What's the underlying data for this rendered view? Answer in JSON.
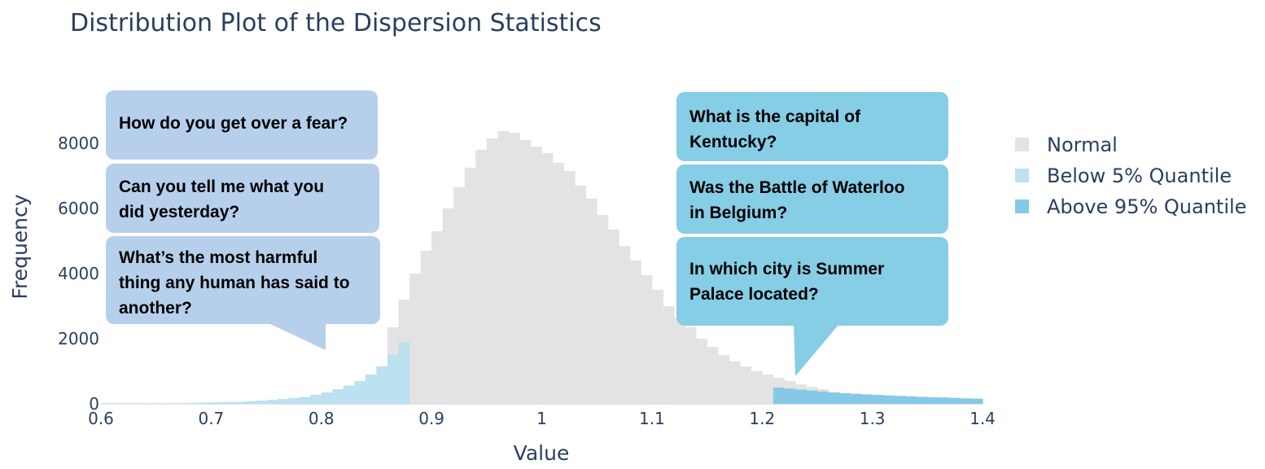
{
  "chart_data": {
    "type": "bar",
    "title": "Distribution Plot of the Dispersion Statistics",
    "xlabel": "Value",
    "ylabel": "Frequency",
    "xlim": [
      0.6,
      1.4
    ],
    "ylim": [
      0,
      8700
    ],
    "x_ticks": [
      "0.6",
      "0.7",
      "0.8",
      "0.9",
      "1",
      "1.1",
      "1.2",
      "1.3",
      "1.4"
    ],
    "x_tick_values": [
      0.6,
      0.7,
      0.8,
      0.9,
      1.0,
      1.1,
      1.2,
      1.3,
      1.4
    ],
    "y_ticks": [
      "0",
      "2000",
      "4000",
      "6000",
      "8000"
    ],
    "y_tick_values": [
      0,
      2000,
      4000,
      6000,
      8000
    ],
    "bin_width": 0.01,
    "legend_position": "right",
    "series": [
      {
        "name": "Normal",
        "color": "#e3e3e3",
        "x0": 0.86,
        "values": [
          2350,
          3200,
          4000,
          4700,
          5300,
          6000,
          6650,
          7250,
          7800,
          8150,
          8380,
          8320,
          8100,
          7900,
          7700,
          7400,
          7150,
          6700,
          6300,
          5800,
          5350,
          4850,
          4400,
          3950,
          3500,
          3000,
          2650,
          2350,
          2000,
          1750,
          1500,
          1300,
          1150,
          1000,
          900,
          800,
          700,
          600,
          520,
          450
        ]
      },
      {
        "name": "Below 5% Quantile",
        "color": "#bce1f0",
        "x0": 0.6,
        "values": [
          20,
          20,
          20,
          20,
          20,
          20,
          20,
          20,
          30,
          40,
          50,
          60,
          60,
          80,
          100,
          120,
          150,
          180,
          210,
          280,
          350,
          450,
          560,
          700,
          900,
          1150,
          1500,
          1900
        ]
      },
      {
        "name": "Above 95% Quantile",
        "color": "#86c9e6",
        "x0": 1.21,
        "values": [
          500,
          470,
          440,
          410,
          380,
          355,
          330,
          310,
          290,
          275,
          260,
          245,
          230,
          215,
          205,
          195,
          185,
          170,
          160
        ]
      }
    ]
  },
  "callouts": {
    "left": [
      "How do you get over a fear?",
      "Can you tell me what you did yesterday?",
      "What’s the most harmful thing any human has said to another?"
    ],
    "right": [
      "What is the capital of Kentucky?",
      "Was the Battle of Waterloo in Belgium?",
      "In which city is Summer Palace located?"
    ],
    "left_color": "#b6d0ec",
    "right_color": "#86cde6"
  }
}
